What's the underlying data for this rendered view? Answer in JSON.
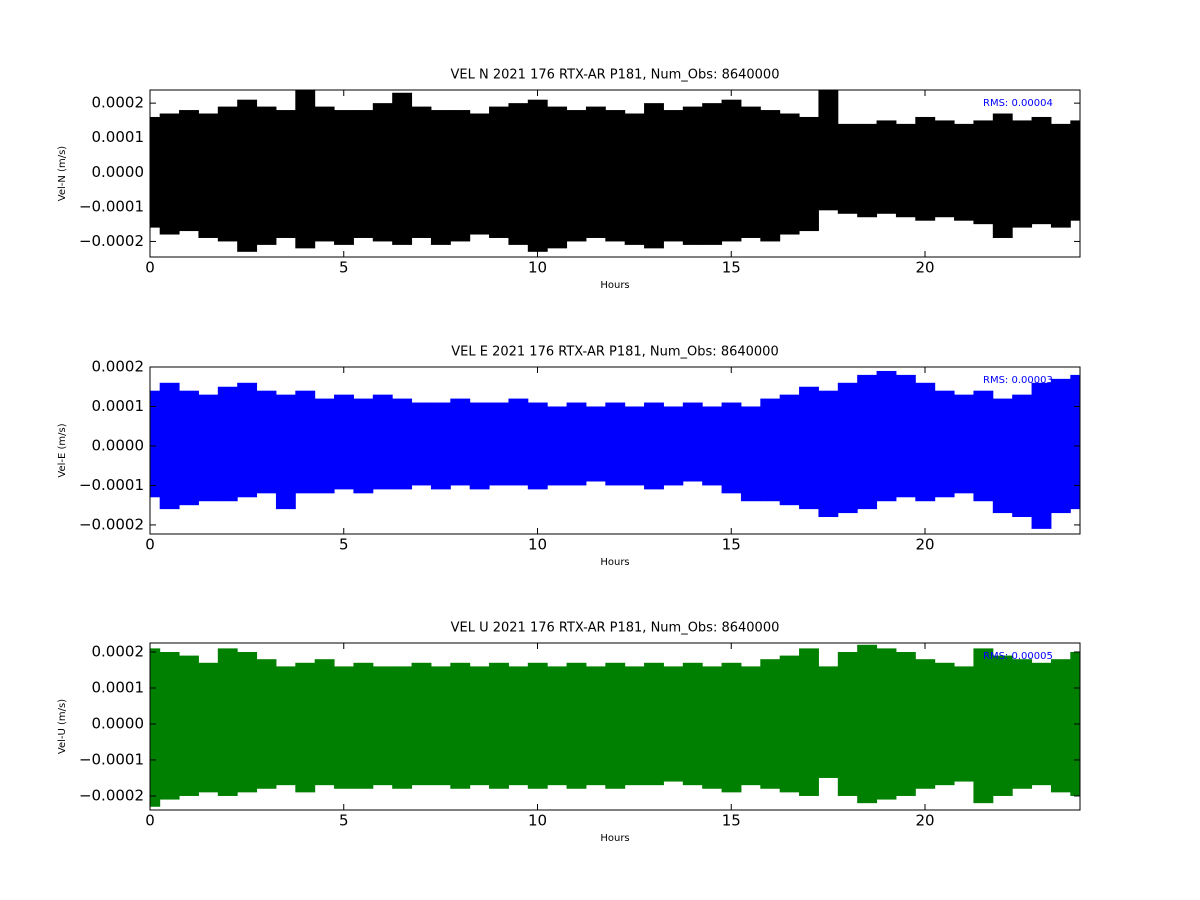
{
  "chart_data": [
    {
      "type": "range",
      "title": "VEL N 2021 176 RTX-AR  P181, Num_Obs: 8640000",
      "xlabel": "Hours",
      "ylabel": "Vel-N (m/s)",
      "annotation": "RMS:  0.00004",
      "annotation_color": "#0000ff",
      "xlim": [
        0,
        24
      ],
      "xticks": [
        0,
        5,
        10,
        15,
        20
      ],
      "ylim": [
        -0.000245,
        0.000238
      ],
      "yticks": [
        {
          "value": -0.0002,
          "label": "−0.0002"
        },
        {
          "value": -0.0001,
          "label": "−0.0001"
        },
        {
          "value": 0,
          "label": "0.0000"
        },
        {
          "value": 0.0001,
          "label": "0.0001"
        },
        {
          "value": 0.0002,
          "label": "0.0002"
        }
      ],
      "x": [
        0,
        0.5,
        1,
        1.5,
        2,
        2.5,
        3,
        3.5,
        4,
        4.5,
        5,
        5.5,
        6,
        6.5,
        7,
        7.5,
        8,
        8.5,
        9,
        9.5,
        10,
        10.5,
        11,
        11.5,
        12,
        12.5,
        13,
        13.5,
        14,
        14.5,
        15,
        15.5,
        16,
        16.5,
        17,
        17.5,
        18,
        18.5,
        19,
        19.5,
        20,
        20.5,
        21,
        21.5,
        22,
        22.5,
        23,
        23.5,
        24
      ],
      "series": [
        {
          "color": "#000000",
          "values": [
            0.00016,
            0.00017,
            0.00018,
            0.00017,
            0.00019,
            0.00021,
            0.00019,
            0.00018,
            0.00024,
            0.00019,
            0.00018,
            0.00018,
            0.0002,
            0.00023,
            0.00019,
            0.00018,
            0.00018,
            0.00017,
            0.00019,
            0.0002,
            0.00021,
            0.00019,
            0.00018,
            0.00019,
            0.00018,
            0.00017,
            0.0002,
            0.00018,
            0.00019,
            0.0002,
            0.00021,
            0.00019,
            0.00018,
            0.00017,
            0.00016,
            0.00024,
            0.00014,
            0.00014,
            0.00015,
            0.00014,
            0.00016,
            0.00015,
            0.00014,
            0.00015,
            0.00017,
            0.00015,
            0.00016,
            0.00014,
            0.00015
          ]
        },
        {
          "color": "#000000",
          "values": [
            -0.00016,
            -0.00018,
            -0.00017,
            -0.00019,
            -0.0002,
            -0.00023,
            -0.00021,
            -0.00019,
            -0.00022,
            -0.0002,
            -0.00021,
            -0.00019,
            -0.0002,
            -0.00021,
            -0.00019,
            -0.00021,
            -0.0002,
            -0.00018,
            -0.00019,
            -0.00021,
            -0.00023,
            -0.00022,
            -0.0002,
            -0.00019,
            -0.0002,
            -0.00021,
            -0.00022,
            -0.0002,
            -0.00021,
            -0.00021,
            -0.0002,
            -0.00019,
            -0.0002,
            -0.00018,
            -0.00017,
            -0.00011,
            -0.00012,
            -0.00013,
            -0.00012,
            -0.00013,
            -0.00014,
            -0.00013,
            -0.00014,
            -0.00015,
            -0.00019,
            -0.00016,
            -0.00015,
            -0.00016,
            -0.00014
          ]
        }
      ]
    },
    {
      "type": "range",
      "title": "VEL E 2021 176 RTX-AR  P181, Num_Obs: 8640000",
      "xlabel": "Hours",
      "ylabel": "Vel-E (m/s)",
      "annotation": "RMS:  0.00003",
      "annotation_color": "#0000ff",
      "xlim": [
        0,
        24
      ],
      "xticks": [
        0,
        5,
        10,
        15,
        20
      ],
      "ylim": [
        -0.000223,
        0.0002
      ],
      "yticks": [
        {
          "value": -0.0002,
          "label": "−0.0002"
        },
        {
          "value": -0.0001,
          "label": "−0.0001"
        },
        {
          "value": 0,
          "label": "0.0000"
        },
        {
          "value": 0.0001,
          "label": "0.0001"
        },
        {
          "value": 0.0002,
          "label": "0.0002"
        }
      ],
      "x": [
        0,
        0.5,
        1,
        1.5,
        2,
        2.5,
        3,
        3.5,
        4,
        4.5,
        5,
        5.5,
        6,
        6.5,
        7,
        7.5,
        8,
        8.5,
        9,
        9.5,
        10,
        10.5,
        11,
        11.5,
        12,
        12.5,
        13,
        13.5,
        14,
        14.5,
        15,
        15.5,
        16,
        16.5,
        17,
        17.5,
        18,
        18.5,
        19,
        19.5,
        20,
        20.5,
        21,
        21.5,
        22,
        22.5,
        23,
        23.5,
        24
      ],
      "series": [
        {
          "color": "#0000ff",
          "values": [
            0.00014,
            0.00016,
            0.00014,
            0.00013,
            0.00015,
            0.00016,
            0.00014,
            0.00013,
            0.00014,
            0.00012,
            0.00013,
            0.00012,
            0.00013,
            0.00012,
            0.00011,
            0.00011,
            0.00012,
            0.00011,
            0.00011,
            0.00012,
            0.00011,
            0.0001,
            0.00011,
            0.0001,
            0.00011,
            0.0001,
            0.00011,
            0.0001,
            0.00011,
            0.0001,
            0.00011,
            0.0001,
            0.00012,
            0.00013,
            0.00015,
            0.00014,
            0.00016,
            0.00018,
            0.00019,
            0.00018,
            0.00016,
            0.00014,
            0.00013,
            0.00014,
            0.00012,
            0.00013,
            0.00016,
            0.00017,
            0.00018
          ]
        },
        {
          "color": "#0000ff",
          "values": [
            -0.00013,
            -0.00016,
            -0.00015,
            -0.00014,
            -0.00014,
            -0.00013,
            -0.00012,
            -0.00016,
            -0.00012,
            -0.00012,
            -0.00011,
            -0.00012,
            -0.00011,
            -0.00011,
            -0.0001,
            -0.00011,
            -0.0001,
            -0.00011,
            -0.0001,
            -0.0001,
            -0.00011,
            -0.0001,
            -0.0001,
            -9e-05,
            -0.0001,
            -0.0001,
            -0.00011,
            -0.0001,
            -9e-05,
            -0.0001,
            -0.00012,
            -0.00014,
            -0.00014,
            -0.00015,
            -0.00016,
            -0.00018,
            -0.00017,
            -0.00016,
            -0.00014,
            -0.00013,
            -0.00014,
            -0.00013,
            -0.00012,
            -0.00014,
            -0.00017,
            -0.00018,
            -0.00021,
            -0.00017,
            -0.00016
          ]
        }
      ]
    },
    {
      "type": "range",
      "title": "VEL U 2021 176 RTX-AR  P181, Num_Obs: 8640000",
      "xlabel": "Hours",
      "ylabel": "Vel-U (m/s)",
      "annotation": "RMS:  0.00005",
      "annotation_color": "#0000ff",
      "xlim": [
        0,
        24
      ],
      "xticks": [
        0,
        5,
        10,
        15,
        20
      ],
      "ylim": [
        -0.000239,
        0.000225
      ],
      "yticks": [
        {
          "value": -0.0002,
          "label": "−0.0002"
        },
        {
          "value": -0.0001,
          "label": "−0.0001"
        },
        {
          "value": 0,
          "label": "0.0000"
        },
        {
          "value": 0.0001,
          "label": "0.0001"
        },
        {
          "value": 0.0002,
          "label": "0.0002"
        }
      ],
      "x": [
        0,
        0.5,
        1,
        1.5,
        2,
        2.5,
        3,
        3.5,
        4,
        4.5,
        5,
        5.5,
        6,
        6.5,
        7,
        7.5,
        8,
        8.5,
        9,
        9.5,
        10,
        10.5,
        11,
        11.5,
        12,
        12.5,
        13,
        13.5,
        14,
        14.5,
        15,
        15.5,
        16,
        16.5,
        17,
        17.5,
        18,
        18.5,
        19,
        19.5,
        20,
        20.5,
        21,
        21.5,
        22,
        22.5,
        23,
        23.5,
        24
      ],
      "series": [
        {
          "color": "#008000",
          "values": [
            0.00021,
            0.0002,
            0.00019,
            0.00017,
            0.00021,
            0.0002,
            0.00018,
            0.00016,
            0.00017,
            0.00018,
            0.00016,
            0.00017,
            0.00016,
            0.00016,
            0.00017,
            0.00016,
            0.00017,
            0.00016,
            0.00017,
            0.00016,
            0.00017,
            0.00016,
            0.00017,
            0.00016,
            0.00017,
            0.00016,
            0.00017,
            0.00016,
            0.00017,
            0.00016,
            0.00017,
            0.00016,
            0.00018,
            0.00019,
            0.00021,
            0.00016,
            0.0002,
            0.00022,
            0.00021,
            0.0002,
            0.00018,
            0.00017,
            0.00016,
            0.00021,
            0.00019,
            0.00018,
            0.00017,
            0.00018,
            0.0002
          ]
        },
        {
          "color": "#008000",
          "values": [
            -0.00023,
            -0.00021,
            -0.0002,
            -0.00019,
            -0.0002,
            -0.00019,
            -0.00018,
            -0.00017,
            -0.00019,
            -0.00017,
            -0.00018,
            -0.00018,
            -0.00017,
            -0.00018,
            -0.00017,
            -0.00017,
            -0.00018,
            -0.00017,
            -0.00018,
            -0.00017,
            -0.00018,
            -0.00017,
            -0.00018,
            -0.00017,
            -0.00018,
            -0.00017,
            -0.00017,
            -0.00016,
            -0.00017,
            -0.00018,
            -0.00019,
            -0.00017,
            -0.00018,
            -0.00019,
            -0.0002,
            -0.00015,
            -0.0002,
            -0.00022,
            -0.00021,
            -0.0002,
            -0.00018,
            -0.00017,
            -0.00016,
            -0.00022,
            -0.0002,
            -0.00018,
            -0.00017,
            -0.00019,
            -0.0002
          ]
        }
      ]
    }
  ]
}
